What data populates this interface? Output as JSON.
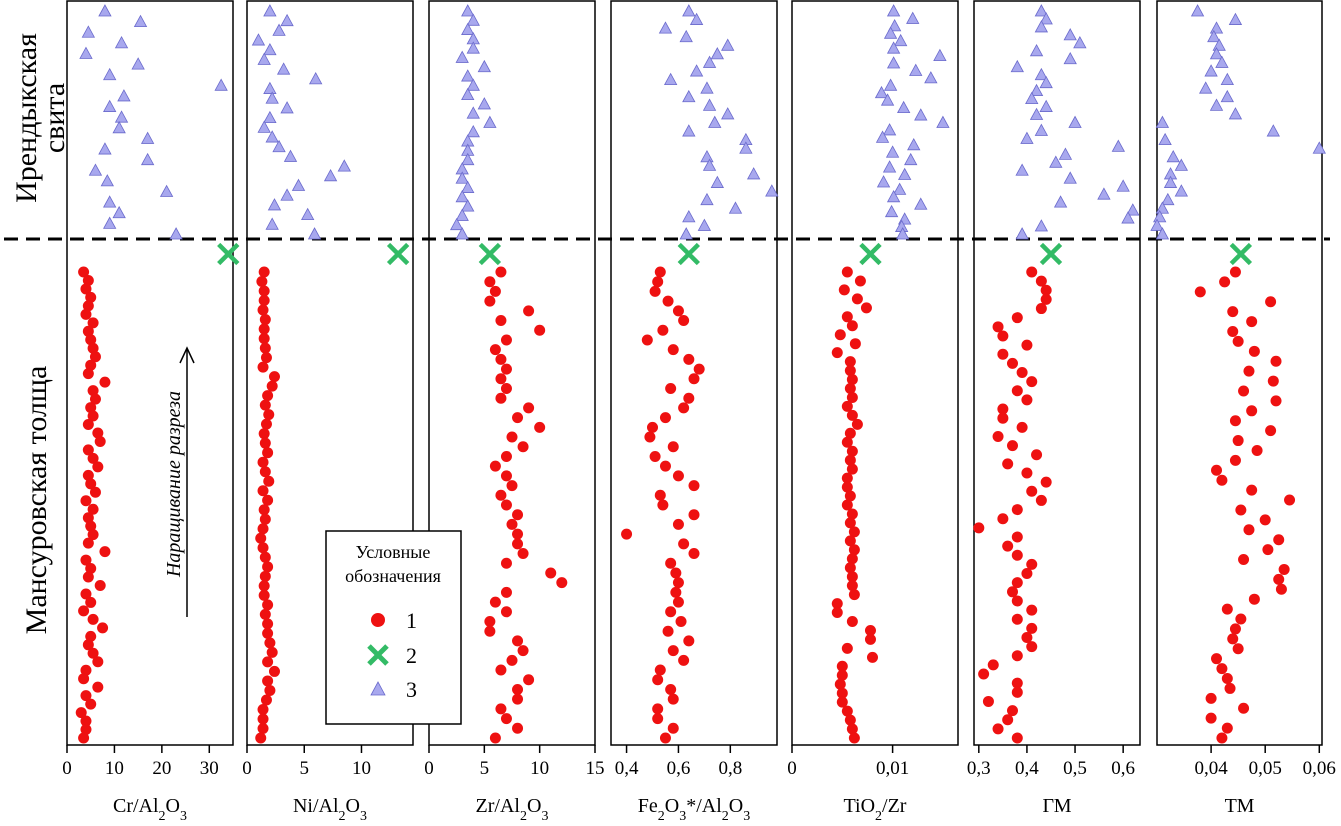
{
  "strata": {
    "upper_line1": "Ирендыкская",
    "upper_line2": "свита",
    "lower": "Мансуровская толща"
  },
  "arrow_label": "Наращивание разреза",
  "legend": {
    "title_line1": "Условные",
    "title_line2": "обозначения",
    "items": [
      {
        "symbol": "circle",
        "label": "1",
        "color": "#ee1111"
      },
      {
        "symbol": "cross",
        "label": "2",
        "color": "#33bb66"
      },
      {
        "symbol": "triangle",
        "label": "3",
        "color": "#a8a8ee"
      }
    ]
  },
  "colors": {
    "group1": "#ee1111",
    "group2": "#33bb66",
    "group3": "#a8a8ee"
  },
  "chart_data": [
    {
      "type": "scatter",
      "xlabel": "Cr/Al2O3",
      "xlim": [
        0,
        35
      ],
      "ticks": [
        0,
        10,
        20,
        30
      ],
      "tick_labels": [
        "0",
        "10",
        "20",
        "30"
      ],
      "series": [
        {
          "group": "1",
          "x": [
            3.5,
            4.5,
            4,
            5,
            4.5,
            4,
            5.5,
            4.5,
            5,
            5.5,
            6,
            5,
            4.5,
            8,
            5.5,
            6,
            5,
            5.5,
            4.5,
            6.5,
            7,
            4.5,
            5.5,
            6.5,
            4.5,
            5,
            6,
            4,
            5.5,
            4.5,
            5,
            5.5,
            4.5,
            8,
            4,
            5,
            4.5,
            7,
            4,
            5,
            3.5,
            5.5,
            7.5,
            5,
            4.5,
            5.5,
            6.5,
            4,
            3.5,
            6.5,
            4,
            5,
            3,
            4,
            4,
            3.5
          ]
        },
        {
          "group": "2",
          "x": [
            34
          ]
        },
        {
          "group": "3",
          "x": [
            8,
            15.5,
            4.5,
            11.5,
            4,
            15,
            9,
            32.5,
            12,
            9,
            11.5,
            11,
            17,
            8,
            17,
            6,
            8.5,
            21,
            9,
            11,
            9,
            23
          ]
        }
      ]
    },
    {
      "type": "scatter",
      "xlabel": "Ni/Al2O3",
      "xlim": [
        0,
        14.5
      ],
      "ticks": [
        0,
        5,
        10
      ],
      "tick_labels": [
        "0",
        "5",
        "10"
      ],
      "series": [
        {
          "group": "1",
          "x": [
            1.5,
            1.3,
            1.5,
            1.5,
            1.4,
            1.6,
            1.5,
            1.5,
            1.6,
            1.7,
            1.4,
            2.4,
            2.2,
            1.8,
            1.6,
            1.9,
            1.7,
            1.5,
            1.6,
            1.8,
            1.4,
            1.6,
            1.9,
            1.4,
            1.8,
            1.5,
            1.6,
            1.4,
            1.2,
            1.4,
            1.6,
            1.8,
            1.6,
            1.5,
            1.5,
            1.8,
            1.6,
            1.8,
            1.8,
            2.0,
            2.2,
            1.8,
            2.4,
            1.8,
            2.0,
            1.7,
            1.4,
            1.4,
            1.4,
            1.2
          ]
        },
        {
          "group": "2",
          "x": [
            13.2
          ]
        },
        {
          "group": "3",
          "x": [
            2,
            3.5,
            2.8,
            1,
            2,
            1.5,
            3.2,
            6,
            2,
            2.2,
            3.5,
            2,
            1.5,
            2.2,
            2.8,
            3.8,
            8.5,
            7.3,
            4.5,
            3.5,
            2.4,
            5.3,
            2.2,
            5.9
          ]
        }
      ]
    },
    {
      "type": "scatter",
      "xlabel": "Zr/Al2O3",
      "xlim": [
        0,
        15
      ],
      "ticks": [
        0,
        5,
        10,
        15
      ],
      "tick_labels": [
        "0",
        "5",
        "10",
        "15"
      ],
      "series": [
        {
          "group": "1",
          "x": [
            6.5,
            5.5,
            6,
            5.5,
            9,
            6.5,
            10,
            7,
            6,
            6.5,
            7,
            6.5,
            7,
            6.5,
            9,
            8,
            10,
            7.5,
            8.5,
            7,
            6,
            7,
            7.5,
            6.5,
            7,
            8,
            7.5,
            8,
            8,
            8.5,
            7,
            11,
            12,
            7,
            6,
            7,
            5.5,
            5.5,
            8,
            8.5,
            7.5,
            6.5,
            9,
            8,
            8,
            6.5,
            7,
            8,
            6
          ]
        },
        {
          "group": "2",
          "x": [
            5.5
          ]
        },
        {
          "group": "3",
          "x": [
            3.5,
            4,
            3.5,
            4,
            4,
            3,
            5,
            3.5,
            4,
            3.5,
            5,
            4,
            5.5,
            4,
            3.5,
            3.5,
            3.5,
            3,
            3,
            3.5,
            3,
            3.5,
            3,
            2.5,
            3
          ]
        }
      ]
    },
    {
      "type": "scatter",
      "xlabel": "Fe2O3*/Al2O3",
      "xlim": [
        0.34,
        0.98
      ],
      "ticks": [
        0.4,
        0.6,
        0.8
      ],
      "tick_labels": [
        "0,4",
        "0,6",
        "0,8"
      ],
      "series": [
        {
          "group": "1",
          "x": [
            0.53,
            0.52,
            0.51,
            0.56,
            0.6,
            0.62,
            0.54,
            0.48,
            0.58,
            0.64,
            0.68,
            0.66,
            0.57,
            0.64,
            0.62,
            0.55,
            0.5,
            0.49,
            0.58,
            0.51,
            0.55,
            0.6,
            0.66,
            0.53,
            0.54,
            0.66,
            0.6,
            0.4,
            0.62,
            0.66,
            0.57,
            0.59,
            0.6,
            0.59,
            0.6,
            0.57,
            0.61,
            0.56,
            0.64,
            0.58,
            0.62,
            0.53,
            0.52,
            0.57,
            0.58,
            0.52,
            0.52,
            0.58,
            0.55
          ]
        },
        {
          "group": "2",
          "x": [
            0.64
          ]
        },
        {
          "group": "3",
          "x": [
            0.64,
            0.67,
            0.55,
            0.63,
            0.79,
            0.75,
            0.72,
            0.67,
            0.57,
            0.71,
            0.64,
            0.72,
            0.79,
            0.74,
            0.64,
            0.86,
            0.86,
            0.71,
            0.72,
            0.89,
            0.75,
            0.96,
            0.71,
            0.82,
            0.64,
            0.7,
            0.63
          ]
        }
      ]
    },
    {
      "type": "scatter",
      "xlabel": "TiO2/Zr",
      "xlim": [
        0,
        0.0165
      ],
      "ticks": [
        0,
        0.01
      ],
      "tick_labels": [
        "0",
        "0,01"
      ],
      "series": [
        {
          "group": "1",
          "x": [
            0.0055,
            0.0068,
            0.0052,
            0.0065,
            0.0074,
            0.0055,
            0.006,
            0.0048,
            0.0063,
            0.0045,
            0.0058,
            0.0058,
            0.006,
            0.0058,
            0.006,
            0.0055,
            0.006,
            0.0065,
            0.0058,
            0.0055,
            0.006,
            0.0058,
            0.006,
            0.0055,
            0.0055,
            0.0058,
            0.0055,
            0.006,
            0.0058,
            0.0062,
            0.0058,
            0.0062,
            0.006,
            0.0058,
            0.006,
            0.006,
            0.0062,
            0.0045,
            0.0045,
            0.006,
            0.0078,
            0.0078,
            0.0055,
            0.008,
            0.005,
            0.005,
            0.0048,
            0.005,
            0.005,
            0.0055,
            0.0058,
            0.006,
            0.0062
          ]
        },
        {
          "group": "2",
          "x": [
            0.0078
          ]
        },
        {
          "group": "3",
          "x": [
            0.0101,
            0.012,
            0.0102,
            0.0098,
            0.0108,
            0.0101,
            0.0147,
            0.0101,
            0.0123,
            0.0138,
            0.0098,
            0.0089,
            0.0095,
            0.0111,
            0.0128,
            0.015,
            0.0097,
            0.009,
            0.0121,
            0.01,
            0.0118,
            0.0097,
            0.0112,
            0.0091,
            0.0107,
            0.0101,
            0.0128,
            0.0099,
            0.0112,
            0.0109,
            0.011
          ]
        }
      ]
    },
    {
      "type": "scatter",
      "xlabel": "ГМ",
      "xlim": [
        0.29,
        0.635
      ],
      "ticks": [
        0.3,
        0.4,
        0.5,
        0.6
      ],
      "tick_labels": [
        "0,3",
        "0,4",
        "0,5",
        "0,6"
      ],
      "series": [
        {
          "group": "1",
          "x": [
            0.41,
            0.43,
            0.44,
            0.44,
            0.43,
            0.38,
            0.34,
            0.35,
            0.4,
            0.35,
            0.37,
            0.39,
            0.41,
            0.38,
            0.4,
            0.35,
            0.35,
            0.39,
            0.34,
            0.37,
            0.42,
            0.36,
            0.4,
            0.44,
            0.41,
            0.43,
            0.38,
            0.35,
            0.3,
            0.38,
            0.36,
            0.38,
            0.41,
            0.4,
            0.38,
            0.37,
            0.38,
            0.41,
            0.38,
            0.41,
            0.4,
            0.41,
            0.38,
            0.33,
            0.31,
            0.38,
            0.38,
            0.32,
            0.37,
            0.36,
            0.34,
            0.38
          ]
        },
        {
          "group": "2",
          "x": [
            0.45
          ]
        },
        {
          "group": "3",
          "x": [
            0.43,
            0.44,
            0.43,
            0.49,
            0.51,
            0.42,
            0.49,
            0.38,
            0.43,
            0.44,
            0.42,
            0.41,
            0.44,
            0.42,
            0.5,
            0.43,
            0.4,
            0.59,
            0.48,
            0.46,
            0.39,
            0.49,
            0.6,
            0.56,
            0.47,
            0.62,
            0.61,
            0.43,
            0.39
          ]
        }
      ]
    },
    {
      "type": "scatter",
      "xlabel": "ТМ",
      "xlim": [
        0.03,
        0.0605
      ],
      "ticks": [
        0.04,
        0.05,
        0.06
      ],
      "tick_labels": [
        "0,04",
        "0,05",
        "0,06"
      ],
      "series": [
        {
          "group": "1",
          "x": [
            0.0445,
            0.0425,
            0.038,
            0.051,
            0.044,
            0.0475,
            0.044,
            0.045,
            0.048,
            0.052,
            0.047,
            0.0515,
            0.046,
            0.052,
            0.0475,
            0.0445,
            0.051,
            0.045,
            0.0485,
            0.0445,
            0.041,
            0.042,
            0.0475,
            0.0545,
            0.0455,
            0.05,
            0.047,
            0.0525,
            0.0505,
            0.046,
            0.0535,
            0.0525,
            0.053,
            0.048,
            0.043,
            0.0455,
            0.0445,
            0.044,
            0.045,
            0.041,
            0.042,
            0.043,
            0.0435,
            0.04,
            0.046,
            0.04,
            0.043,
            0.042
          ]
        },
        {
          "group": "2",
          "x": [
            0.0455
          ]
        },
        {
          "group": "3",
          "x": [
            0.0375,
            0.0445,
            0.041,
            0.0405,
            0.0415,
            0.041,
            0.042,
            0.04,
            0.043,
            0.039,
            0.043,
            0.041,
            0.0445,
            0.031,
            0.0515,
            0.0315,
            0.06,
            0.033,
            0.0345,
            0.0325,
            0.0325,
            0.0345,
            0.032,
            0.031,
            0.0305,
            0.03,
            0.031
          ]
        }
      ]
    }
  ]
}
